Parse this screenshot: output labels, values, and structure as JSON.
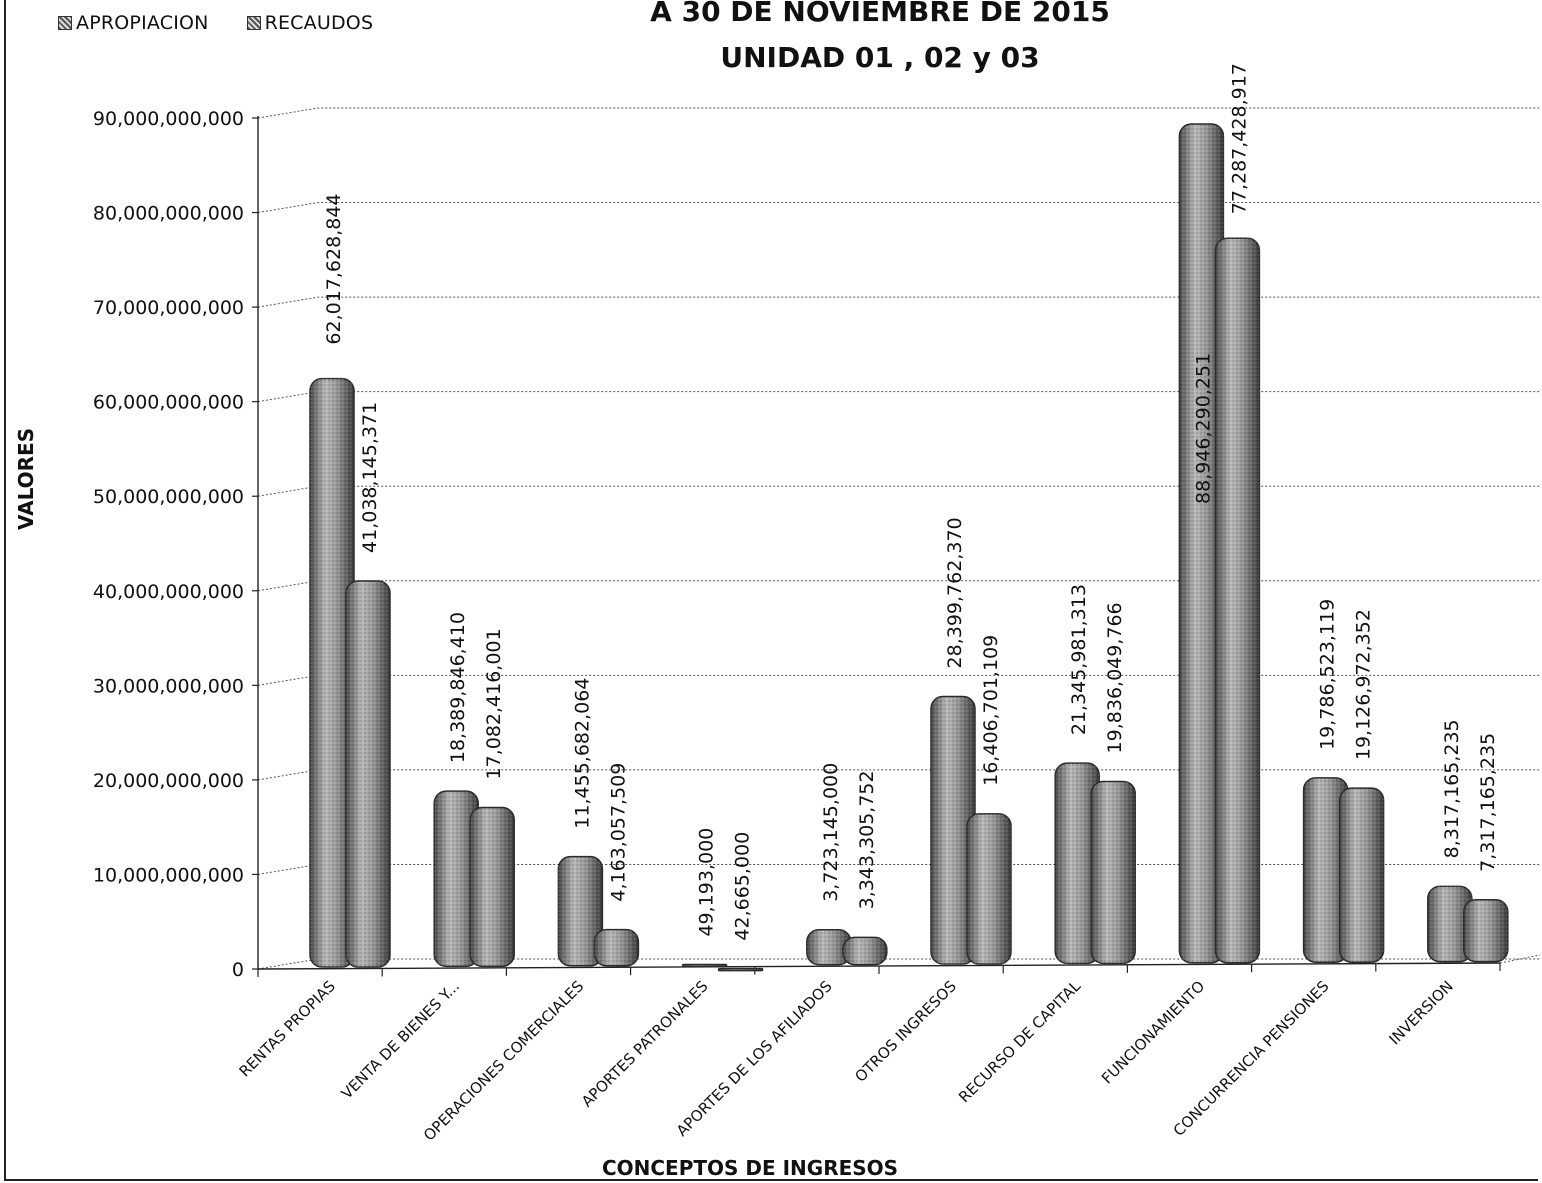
{
  "chart_data": {
    "type": "bar",
    "title": "A  30 DE  NOVIEMBRE DE 2015",
    "subtitle": "UNIDAD 01 , 02  y 03",
    "xlabel": "CONCEPTOS DE INGRESOS",
    "ylabel": "VALORES",
    "ylim": [
      0,
      90000000000
    ],
    "yticks": [
      "0",
      "10,000,000,000",
      "20,000,000,000",
      "30,000,000,000",
      "40,000,000,000",
      "50,000,000,000",
      "60,000,000,000",
      "70,000,000,000",
      "80,000,000,000",
      "90,000,000,000"
    ],
    "grid": true,
    "legend_position": "top-left",
    "categories": [
      "RENTAS PROPIAS",
      "VENTA DE BIENES Y...",
      "OPERACIONES COMERCIALES",
      "APORTES PATRONALES",
      "APORTES DE LOS AFILIADOS",
      "OTROS INGRESOS",
      "RECURSO DE CAPITAL",
      "FUNCIONAMIENTO",
      "CONCURRENCIA PENSIONES",
      "INVERSION"
    ],
    "series": [
      {
        "name": "APROPIACION",
        "values": [
          62017628844,
          18389846410,
          11455682064,
          49193000,
          3723145000,
          28399762370,
          21345981313,
          88946290251,
          19786523119,
          8317165235
        ],
        "labels": [
          "62,017,628,844",
          "18,389,846,410",
          "11,455,682,064",
          "49,193,000",
          "3,723,145,000",
          "28,399,762,370",
          "21,345,981,313",
          "88,946,290,251",
          "19,786,523,119",
          "8,317,165,235"
        ]
      },
      {
        "name": "RECAUDOS",
        "values": [
          41038145371,
          17082416001,
          4163057509,
          42665000,
          3343305752,
          16406701109,
          19836049766,
          77287428917,
          19126972352,
          7317165235
        ],
        "labels": [
          "41,038,145,371",
          "17,082,416,001",
          "4,163,057,509",
          "42,665,000",
          "3,343,305,752",
          "16,406,701,109",
          "19,836,049,766",
          "77,287,428,917",
          "19,126,972,352",
          "7,317,165,235"
        ]
      }
    ],
    "colors": {
      "bar_fill": "#8c8c8c",
      "bar_edge": "#2b2b2b",
      "grid": "#555555"
    }
  }
}
